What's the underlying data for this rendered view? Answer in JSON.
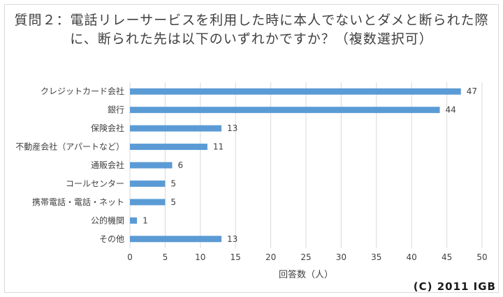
{
  "chart_data": {
    "type": "bar",
    "orientation": "horizontal",
    "title": "質問２：電話リレーサービスを利用した時に本人でないとダメと断られた際に、断られた先は以下のいずれかですか？（複数選択可）",
    "categories": [
      "クレジットカード会社",
      "銀行",
      "保険会社",
      "不動産会社（アパートなど）",
      "通販会社",
      "コールセンター",
      "携帯電話・電話・ネット",
      "公的機関",
      "その他"
    ],
    "values": [
      47,
      44,
      13,
      11,
      6,
      5,
      5,
      1,
      13
    ],
    "xlabel": "回答数（人）",
    "ylabel": "",
    "xlim": [
      0,
      50
    ],
    "xticks": [
      "0",
      "5",
      "10",
      "15",
      "20",
      "25",
      "30",
      "35",
      "40",
      "45",
      "50"
    ],
    "grid": true,
    "data_labels": true,
    "bar_color": "#5b9bd5"
  },
  "copyright": "(C) 2011 IGB"
}
